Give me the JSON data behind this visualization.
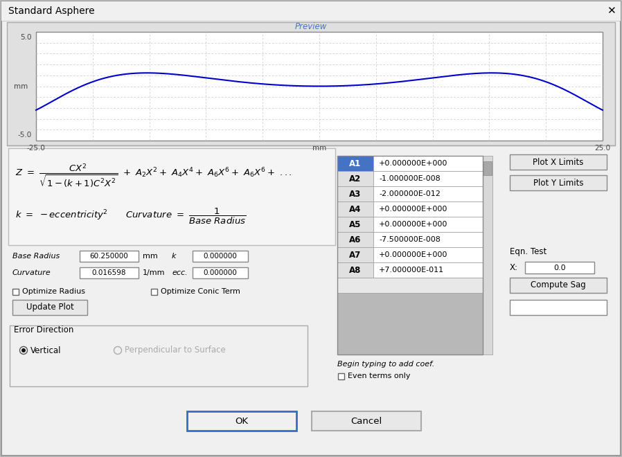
{
  "title": "Standard Asphere",
  "bg_color": "#c8c8c8",
  "dialog_bg": "#f0f0f0",
  "plot_bg": "#ffffff",
  "preview_title": "Preview",
  "preview_title_color": "#4472c4",
  "curve_color": "#0000cc",
  "grid_color": "#c0c0c0",
  "xlim": [
    -25.0,
    25.0
  ],
  "ylim": [
    -5.0,
    5.0
  ],
  "xlabel": "mm",
  "ylabel": "mm",
  "base_radius": "60.250000",
  "base_radius_unit": "mm",
  "curvature": "0.016598",
  "curvature_unit": "1/mm",
  "k_val": "0.000000",
  "ecc": "0.000000",
  "coeff_labels": [
    "A1",
    "A2",
    "A3",
    "A4",
    "A5",
    "A6",
    "A7",
    "A8"
  ],
  "coeff_values": [
    "+0.000000E+000",
    "-1.000000E-008",
    "-2.000000E-012",
    "+0.000000E+000",
    "+0.000000E+000",
    "-7.500000E-008",
    "+0.000000E+000",
    "+7.000000E-011"
  ],
  "coeff_selected": 0,
  "coeff_selected_bg": "#4472c4",
  "coeff_selected_fg": "#ffffff",
  "button_ok": "OK",
  "button_cancel": "Cancel",
  "button_update": "Update Plot",
  "button_plotx": "Plot X Limits",
  "button_ploty": "Plot Y Limits",
  "button_compute": "Compute Sag",
  "label_optimize_radius": "Optimize Radius",
  "label_optimize_conic": "Optimize Conic Term",
  "label_begin_typing": "Begin typing to add coef.",
  "label_even_terms": "Even terms only",
  "label_error_dir": "Error Direction",
  "label_vertical": "Vertical",
  "label_perp": "Perpendicular to Surface",
  "label_eqn_test": "Eqn. Test",
  "label_x": "X:",
  "eqn_x_val": "0.0",
  "window_bg": "#c0c0c0"
}
